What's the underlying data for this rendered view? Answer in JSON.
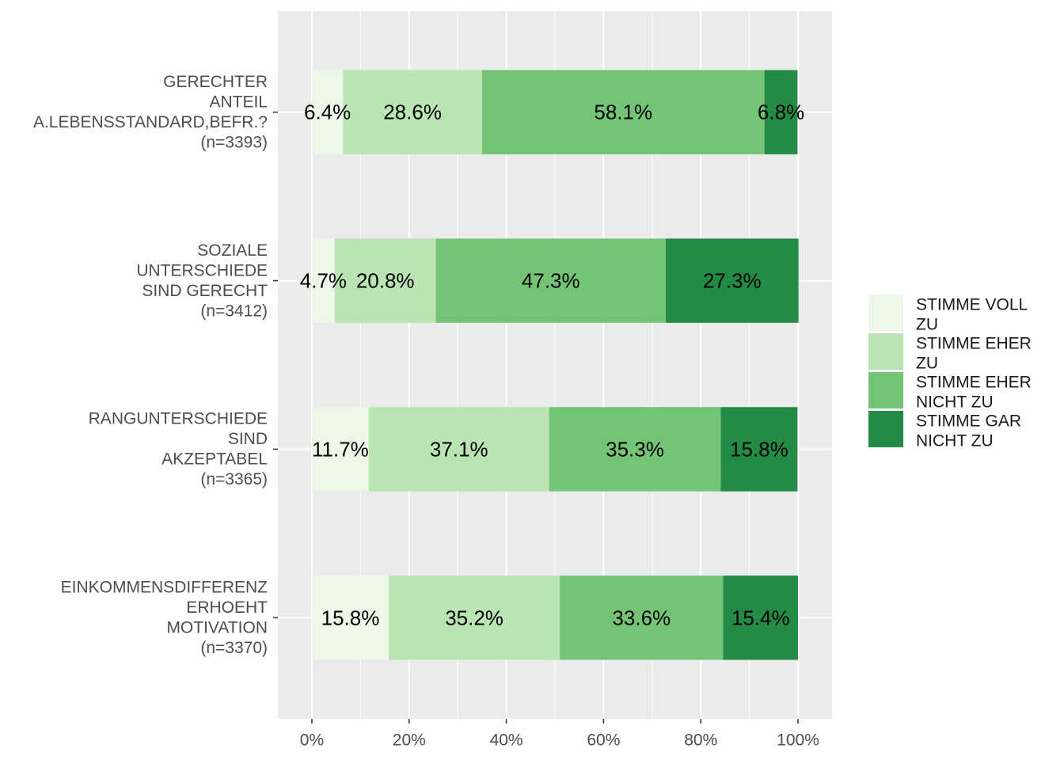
{
  "chart_data": {
    "type": "bar",
    "orientation": "horizontal",
    "stacked": true,
    "categories": [
      {
        "lines": [
          "GERECHTER",
          "ANTEIL",
          "A.LEBENSSTANDARD,BEFR.?",
          "(n=3393)"
        ]
      },
      {
        "lines": [
          "SOZIALE",
          "UNTERSCHIEDE",
          "SIND GERECHT",
          "(n=3412)"
        ]
      },
      {
        "lines": [
          "RANGUNTERSCHIEDE",
          "SIND",
          "AKZEPTABEL",
          "(n=3365)"
        ]
      },
      {
        "lines": [
          "EINKOMMENSDIFFERENZ",
          "ERHOEHT",
          "MOTIVATION",
          "(n=3370)"
        ]
      }
    ],
    "series": [
      {
        "name": "STIMME VOLL ZU",
        "legend_lines": [
          "STIMME VOLL",
          "ZU"
        ],
        "color": "#edf8e9",
        "values": [
          6.4,
          4.7,
          11.7,
          15.8
        ],
        "labels": [
          "6.4%",
          "4.7%",
          "11.7%",
          "15.8%"
        ]
      },
      {
        "name": "STIMME EHER ZU",
        "legend_lines": [
          "STIMME EHER",
          "ZU"
        ],
        "color": "#bae4b3",
        "values": [
          28.6,
          20.8,
          37.1,
          35.2
        ],
        "labels": [
          "28.6%",
          "20.8%",
          "37.1%",
          "35.2%"
        ]
      },
      {
        "name": "STIMME EHER NICHT ZU",
        "legend_lines": [
          "STIMME EHER",
          "NICHT ZU"
        ],
        "color": "#74c476",
        "values": [
          58.1,
          47.3,
          35.3,
          33.6
        ],
        "labels": [
          "58.1%",
          "47.3%",
          "35.3%",
          "33.6%"
        ]
      },
      {
        "name": "STIMME GAR NICHT ZU",
        "legend_lines": [
          "STIMME GAR",
          "NICHT ZU"
        ],
        "color": "#238b45",
        "values": [
          6.8,
          27.3,
          15.8,
          15.4
        ],
        "labels": [
          "6.8%",
          "27.3%",
          "15.8%",
          "15.4%"
        ]
      }
    ],
    "x_ticks": [
      0,
      20,
      40,
      60,
      80,
      100
    ],
    "x_tick_labels": [
      "0%",
      "20%",
      "40%",
      "60%",
      "80%",
      "100%"
    ],
    "xlim": [
      -7,
      107
    ],
    "grid": true,
    "legend_position": "right",
    "panel_color": "#ebebeb",
    "grid_color": "#ffffff"
  }
}
